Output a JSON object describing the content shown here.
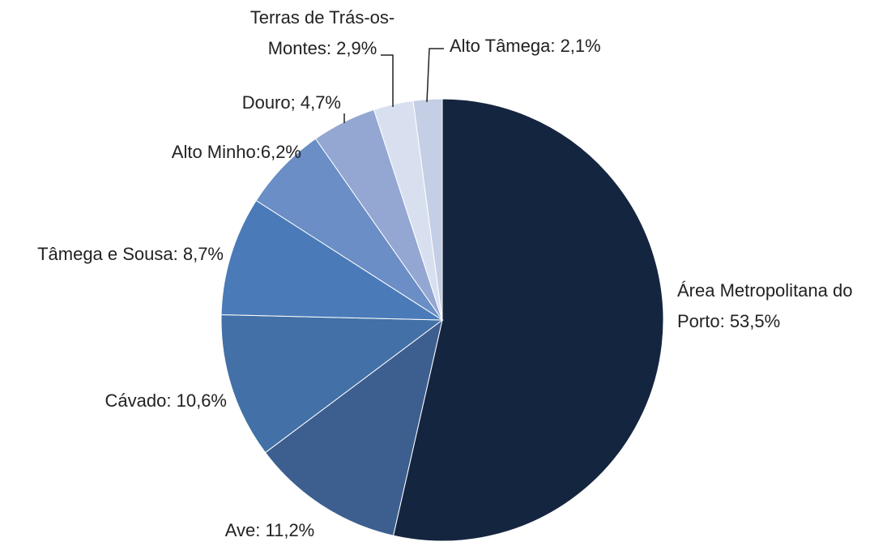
{
  "chart_data": {
    "type": "pie",
    "categories": [
      "Área Metropolitana do Porto",
      "Ave",
      "Cávado",
      "Tâmega e Sousa",
      "Alto Minho",
      "Douro",
      "Terras de Trás-os-Montes",
      "Alto Tâmega"
    ],
    "values": [
      53.5,
      11.2,
      10.6,
      8.7,
      6.2,
      4.7,
      2.9,
      2.1
    ],
    "value_labels": [
      ": 53,5%",
      ": 11,2%",
      ": 10,6%",
      ": 8,7%",
      ":6,2%",
      "; 4,7%",
      ": 2,9%",
      ": 2,1%"
    ],
    "colors": [
      "#14253f",
      "#3d5f8f",
      "#4270a7",
      "#4a7bb8",
      "#6a8ec5",
      "#93a7d2",
      "#d8e0f0",
      "#c4cee4"
    ]
  }
}
